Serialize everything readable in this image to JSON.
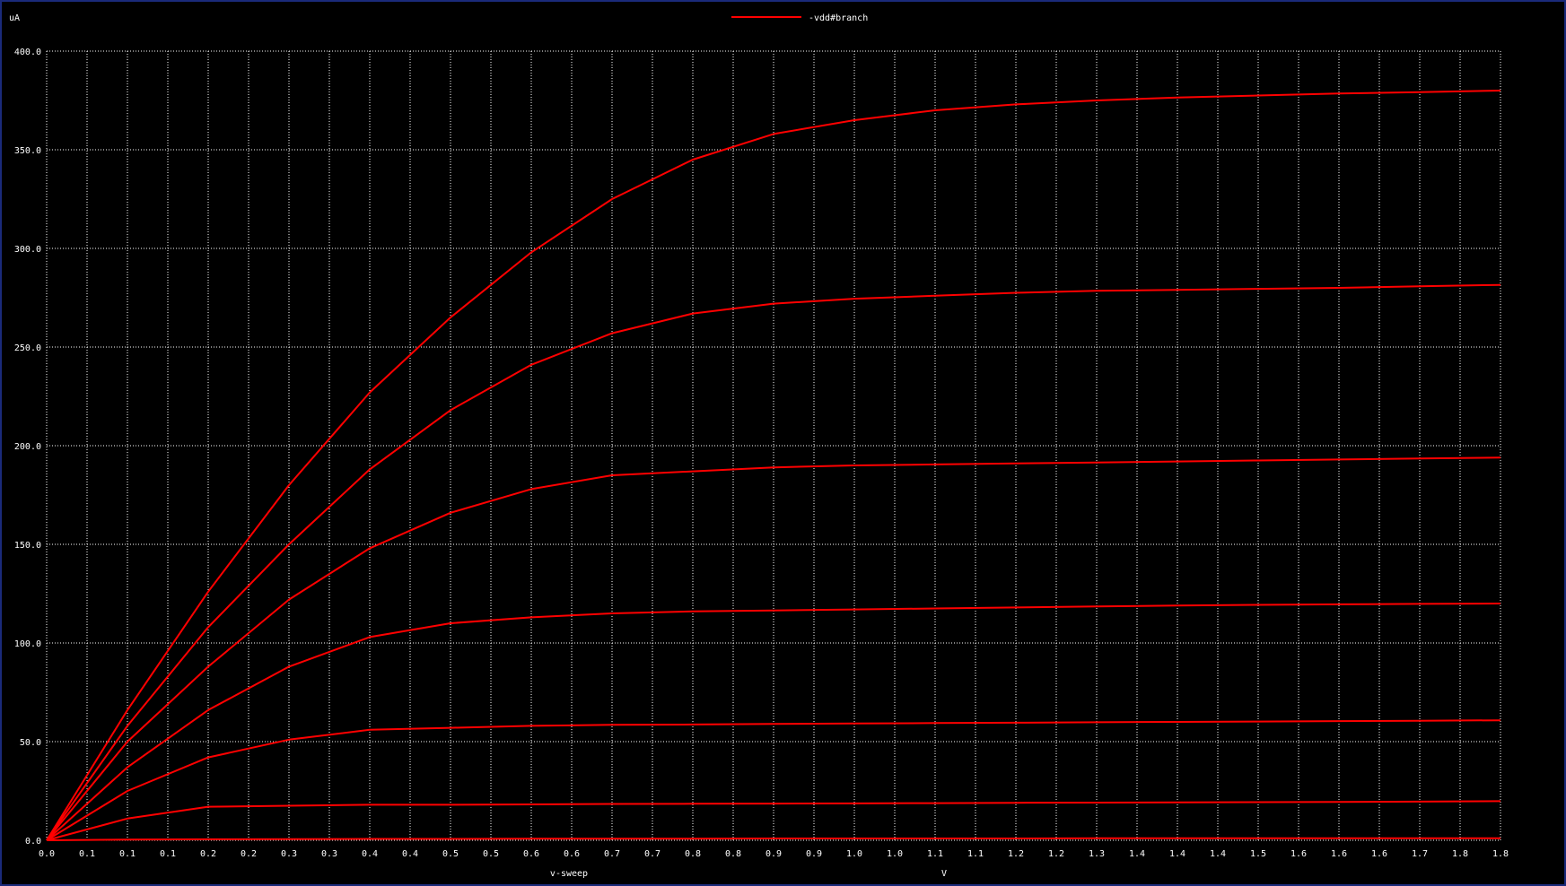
{
  "chart_data": {
    "type": "line",
    "title": "",
    "ylabel": "uA",
    "xlabel": "v-sweep",
    "xunit": "V",
    "legend": {
      "position": "top",
      "labels": [
        "-vdd#branch"
      ]
    },
    "grid": true,
    "xlim": [
      0,
      1.8
    ],
    "ylim": [
      0,
      400
    ],
    "x_tick_labels": [
      "0.0",
      "0.1",
      "0.1",
      "0.1",
      "0.2",
      "0.2",
      "0.3",
      "0.3",
      "0.4",
      "0.4",
      "0.5",
      "0.5",
      "0.6",
      "0.6",
      "0.7",
      "0.7",
      "0.8",
      "0.8",
      "0.9",
      "0.9",
      "1.0",
      "1.0",
      "1.1",
      "1.1",
      "1.2",
      "1.2",
      "1.3",
      "1.4",
      "1.4",
      "1.4",
      "1.5",
      "1.6",
      "1.6",
      "1.6",
      "1.7",
      "1.8",
      "1.8"
    ],
    "y_tick_labels": [
      "0.0",
      "50.0",
      "100.0",
      "150.0",
      "200.0",
      "250.0",
      "300.0",
      "350.0",
      "400.0"
    ],
    "x": [
      0,
      0.1,
      0.2,
      0.3,
      0.4,
      0.5,
      0.6,
      0.7,
      0.8,
      0.9,
      1.0,
      1.1,
      1.2,
      1.3,
      1.4,
      1.5,
      1.6,
      1.7,
      1.8
    ],
    "series": [
      {
        "values": [
          0,
          0.3,
          0.5,
          0.6,
          0.7,
          0.7,
          0.8,
          0.8,
          0.8,
          0.9,
          0.9,
          0.9,
          0.9,
          1.0,
          1.0,
          1.0,
          1.0,
          1.0,
          1.0
        ]
      },
      {
        "values": [
          0,
          11,
          17,
          17.5,
          18,
          18,
          18.2,
          18.4,
          18.5,
          18.6,
          18.7,
          18.8,
          19,
          19.1,
          19.2,
          19.3,
          19.4,
          19.6,
          19.8
        ]
      },
      {
        "values": [
          0,
          25,
          42,
          51,
          56,
          57,
          58,
          58.5,
          58.7,
          59,
          59.2,
          59.4,
          59.6,
          59.8,
          60,
          60.2,
          60.4,
          60.6,
          60.8
        ]
      },
      {
        "values": [
          0,
          37,
          66,
          88,
          103,
          110,
          113,
          115,
          116,
          116.5,
          117,
          117.5,
          118,
          118.5,
          119,
          119.3,
          119.6,
          119.8,
          120
        ]
      },
      {
        "values": [
          0,
          50,
          88,
          122,
          148,
          166,
          178,
          185,
          187,
          189,
          190,
          190.5,
          191,
          191.5,
          192,
          192.5,
          193,
          193.5,
          194
        ]
      },
      {
        "values": [
          0,
          58,
          108,
          150,
          188,
          218,
          241,
          257,
          267,
          272,
          274.5,
          276,
          277.5,
          278.5,
          279,
          279.5,
          280,
          280.8,
          281.5
        ]
      },
      {
        "values": [
          0,
          66,
          126,
          180,
          227,
          265,
          298,
          325,
          345,
          358,
          365,
          370,
          373,
          375,
          376.5,
          377.5,
          378.5,
          379.2,
          380
        ]
      }
    ],
    "colors": {
      "background": "#000000",
      "line": "#ff0000",
      "grid": "#ffffff",
      "text": "#ffffff",
      "border": "#1a2a7a"
    }
  }
}
